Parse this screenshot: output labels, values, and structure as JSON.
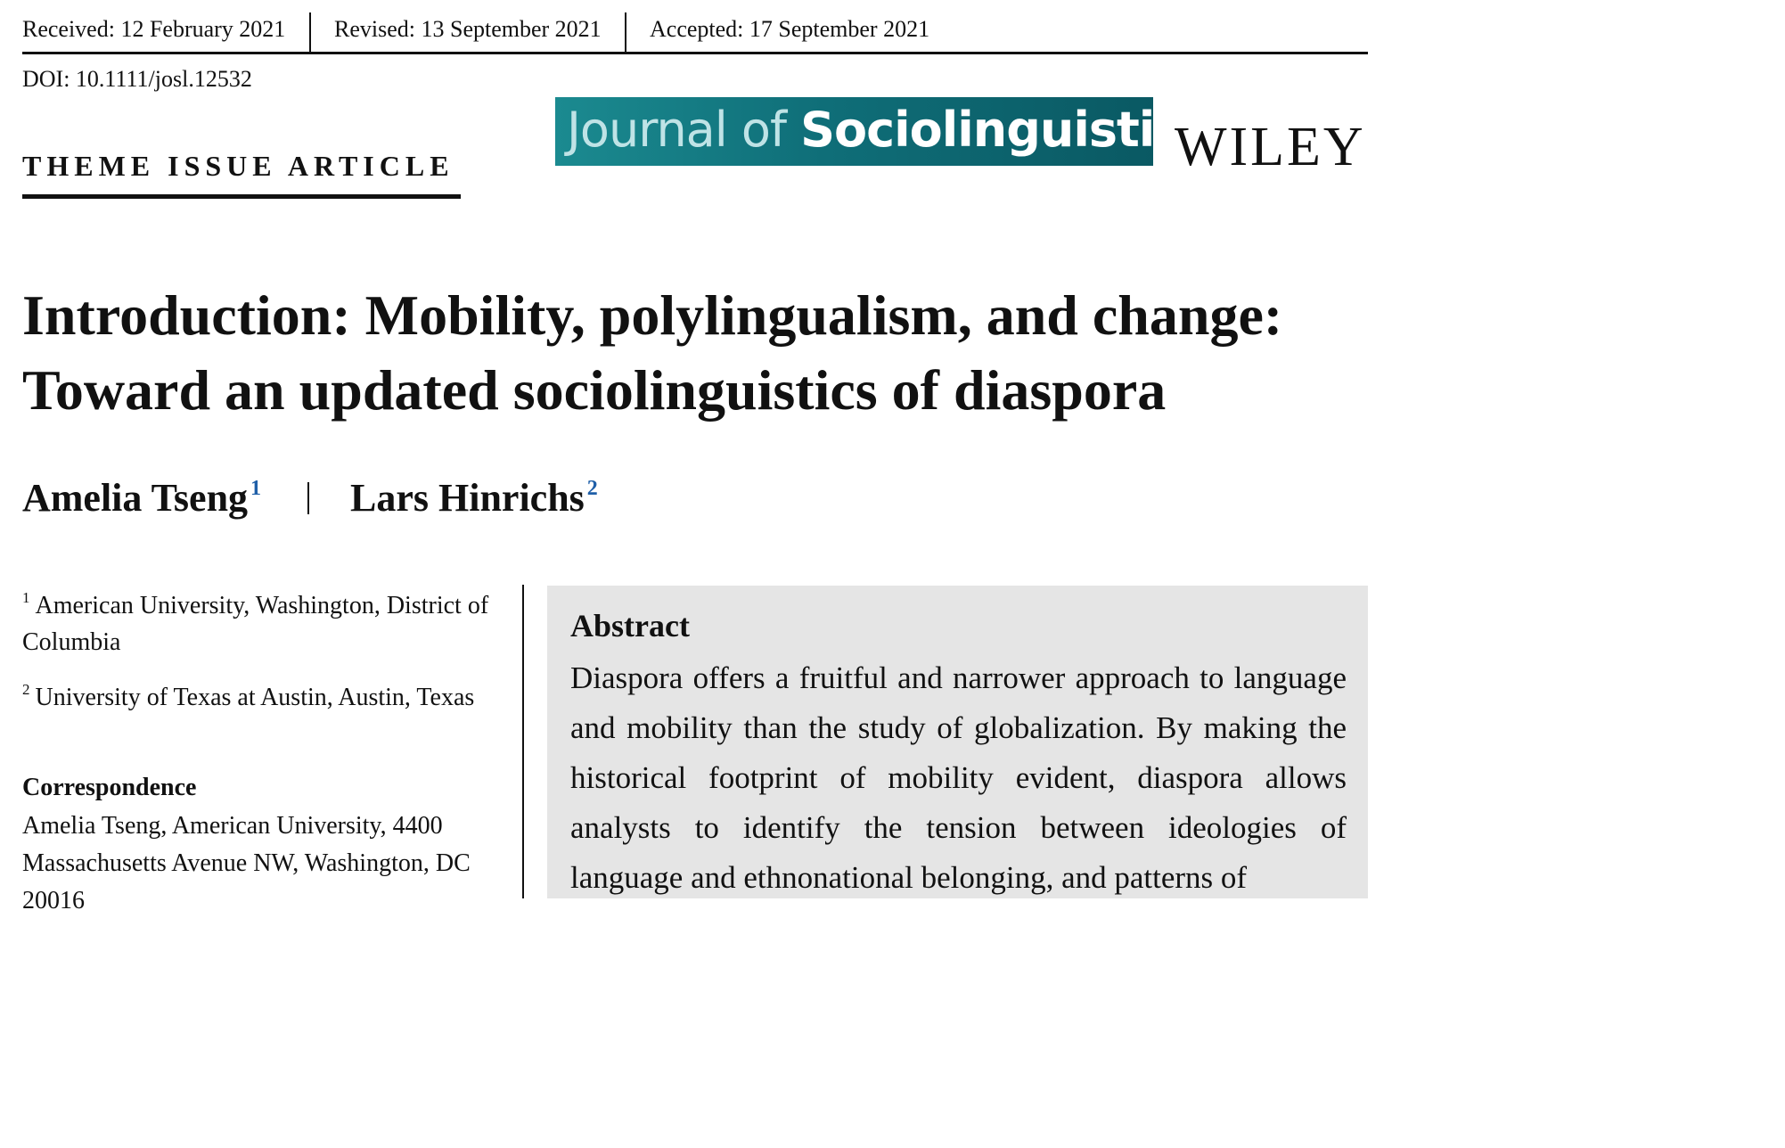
{
  "header": {
    "received": "Received: 12 February 2021",
    "revised": "Revised: 13 September 2021",
    "accepted": "Accepted: 17 September 2021",
    "doi": "DOI: 10.1111/josl.12532"
  },
  "article_type": "THEME ISSUE ARTICLE",
  "journal": {
    "name_part1": "Journal of",
    "name_part2": "Sociolinguistics",
    "publisher": "WILEY",
    "banner_color": "#0f6e78"
  },
  "title": {
    "line1": "Introduction: Mobility, polylingualism, and change:",
    "line2": "Toward an updated sociolinguistics of diaspora"
  },
  "authors": [
    {
      "name": "Amelia Tseng",
      "affiliation_ref": "1"
    },
    {
      "name": "Lars Hinrichs",
      "affiliation_ref": "2"
    }
  ],
  "affiliations": [
    {
      "ref": "1",
      "text": "American University, Washington, District of Columbia"
    },
    {
      "ref": "2",
      "text": "University of Texas at Austin, Austin, Texas"
    }
  ],
  "correspondence": {
    "heading": "Correspondence",
    "text": "Amelia Tseng, American University, 4400 Massachusetts Avenue NW, Washington, DC 20016"
  },
  "abstract": {
    "heading": "Abstract",
    "text": "Diaspora offers a fruitful and narrower approach to lan­guage and mobility than the study of globalization. By mak­ing the historical footprint of mobility evident, diaspora allows analysts to identify the tension between ideologies of language and ethnonational belonging, and patterns of"
  }
}
